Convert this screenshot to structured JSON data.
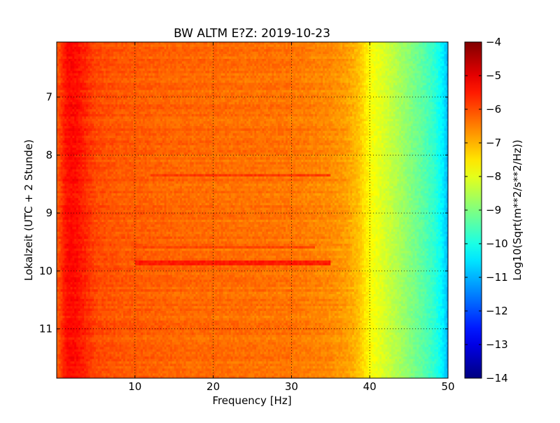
{
  "chart_data": {
    "type": "heatmap",
    "title": "BW ALTM E?Z: 2019-10-23",
    "xlabel": "Frequency [Hz]",
    "ylabel": "Lokalzeit (UTC + 2 Stunde)",
    "xlim": [
      0,
      50
    ],
    "ylim": [
      6.05,
      11.85
    ],
    "y_inverted": true,
    "x_ticks": [
      10,
      20,
      30,
      40,
      50
    ],
    "x_tick_labels": [
      "10",
      "20",
      "30",
      "40",
      "50"
    ],
    "y_ticks": [
      7,
      8,
      9,
      10,
      11
    ],
    "y_tick_labels": [
      "7",
      "8",
      "9",
      "10",
      "11"
    ],
    "grid": true,
    "colormap": "jet",
    "colorbar": {
      "label": "Log10(Sqrt(m**2/s**2/Hz))",
      "min": -14,
      "max": -4,
      "ticks": [
        -4,
        -5,
        -6,
        -7,
        -8,
        -9,
        -10,
        -11,
        -12,
        -13,
        -14
      ],
      "tick_labels": [
        "−4",
        "−5",
        "−6",
        "−7",
        "−8",
        "−9",
        "−10",
        "−11",
        "−12",
        "−13",
        "−14"
      ]
    },
    "spectrum_profile": {
      "frequency_hz": [
        0,
        1,
        1.5,
        2.5,
        3.5,
        5,
        8,
        15,
        25,
        30,
        35,
        37,
        38.5,
        40,
        41,
        43,
        45,
        47,
        48.5,
        49.5,
        50
      ],
      "log_amplitude": [
        -6.2,
        -5.5,
        -5.3,
        -5.35,
        -5.6,
        -5.95,
        -6.1,
        -6.25,
        -6.35,
        -6.4,
        -6.6,
        -6.8,
        -7.1,
        -7.75,
        -7.95,
        -8.4,
        -8.9,
        -9.4,
        -9.9,
        -10.5,
        -11.0
      ]
    },
    "notable_bands": [
      {
        "time": 8.35,
        "freq_range": [
          12,
          35
        ],
        "log_amplitude": -5.8
      },
      {
        "time": 9.85,
        "freq_range": [
          10,
          35
        ],
        "log_amplitude": -5.5
      },
      {
        "time": 9.6,
        "freq_range": [
          10,
          33
        ],
        "log_amplitude": -5.9
      }
    ]
  }
}
